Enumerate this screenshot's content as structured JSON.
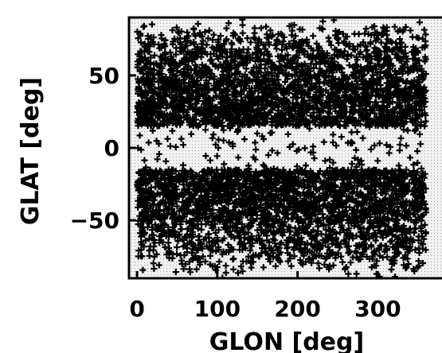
{
  "chart_data": {
    "type": "scatter",
    "title": "",
    "xlabel": "GLON [deg]",
    "ylabel": "GLAT [deg]",
    "xlim": [
      -10,
      380
    ],
    "ylim": [
      -90,
      90
    ],
    "x_ticks": [
      0,
      100,
      200,
      300
    ],
    "x_tick_labels": [
      "0",
      "100",
      "200",
      "300"
    ],
    "y_ticks": [
      50,
      0,
      -50
    ],
    "y_tick_labels": [
      "50",
      "0",
      "−50"
    ],
    "grid": false,
    "legend": "none",
    "marker": "+",
    "density": "very dense, nearly uniform sky coverage except a sparse band around GLAT 0",
    "sparse_band": {
      "glat_min": -15,
      "glat_max": 15
    },
    "background_color": "#d9d9d9",
    "point_color": "#000000"
  }
}
